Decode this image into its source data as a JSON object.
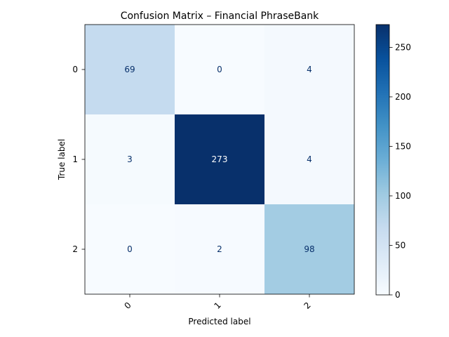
{
  "chart_data": {
    "type": "heatmap",
    "title": "Confusion Matrix – Financial PhraseBank",
    "xlabel": "Predicted label",
    "ylabel": "True label",
    "x_categories": [
      "0",
      "1",
      "2"
    ],
    "y_categories": [
      "0",
      "1",
      "2"
    ],
    "values": [
      [
        69,
        0,
        4
      ],
      [
        3,
        273,
        4
      ],
      [
        0,
        2,
        98
      ]
    ],
    "colormap": "Blues",
    "colorbar": {
      "range": [
        0,
        273
      ],
      "ticks": [
        0,
        50,
        100,
        150,
        200,
        250
      ]
    },
    "x_tick_rotation_deg": 45,
    "text_colors": {
      "dark_cell": "#ffffff",
      "light_cell": "#08306b"
    }
  }
}
